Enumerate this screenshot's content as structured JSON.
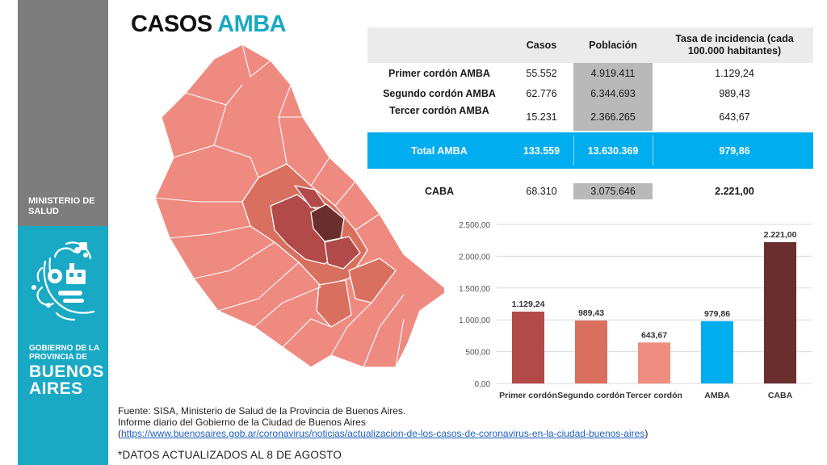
{
  "title": {
    "part1": "CASOS",
    "part2": "AMBA"
  },
  "sidebar": {
    "ministry_line1": "MINISTERIO DE",
    "ministry_line2": "SALUD",
    "gov_line1": "GOBIERNO DE LA",
    "gov_line2": "PROVINCIA DE",
    "ba_line1": "BUENOS",
    "ba_line2": "AIRES"
  },
  "table": {
    "headers": [
      "Casos",
      "Población",
      "Tasa de incidencia (cada 100.000 habitantes)"
    ],
    "rows": [
      {
        "label": "Primer cordón AMBA",
        "casos": "55.552",
        "poblacion": "4.919.411",
        "tasa": "1.129,24"
      },
      {
        "label": "Segundo cordón AMBA",
        "casos": "62.776",
        "poblacion": "6.344.693",
        "tasa": "989,43"
      },
      {
        "label": "Tercer cordón AMBA",
        "casos": "15.231",
        "poblacion": "2.366.265",
        "tasa": "643,67"
      }
    ],
    "total": {
      "label": "Total AMBA",
      "casos": "133.559",
      "poblacion": "13.630.369",
      "tasa": "979,86"
    },
    "caba": {
      "label": "CABA",
      "casos": "68.310",
      "poblacion": "3.075.646",
      "tasa": "2.221,00"
    }
  },
  "chart_data": {
    "type": "bar",
    "categories": [
      "Primer cordón",
      "Segundo cordón",
      "Tercer cordón",
      "AMBA",
      "CABA"
    ],
    "values": [
      1129.24,
      989.43,
      643.67,
      979.86,
      2221.0
    ],
    "value_labels": [
      "1.129,24",
      "989,43",
      "643,67",
      "979,86",
      "2.221,00"
    ],
    "colors": [
      "#b24a4a",
      "#d9705f",
      "#ee8d80",
      "#00aeef",
      "#6b2e2e"
    ],
    "yticks": [
      0,
      500,
      1000,
      1500,
      2000,
      2500
    ],
    "ytick_labels": [
      "0,00",
      "500,00",
      "1.000,00",
      "1.500,00",
      "2.000,00",
      "2.500,00"
    ],
    "ylim": [
      0,
      2500
    ],
    "grid": true,
    "title": "",
    "xlabel": "",
    "ylabel": ""
  },
  "map_colors": {
    "light": "#ef8a80",
    "medium": "#d9705f",
    "dark": "#b24a4a",
    "darkest": "#6b2e2e"
  },
  "source": {
    "line1": "Fuente: SISA, Ministerio de Salud de la Provincia de Buenos Aires.",
    "line2": " Informe diario del Gobierno de la Ciudad de Buenos Aires",
    "open": "(",
    "url": "https://www.buenosaires.gob.ar/coronavirus/noticias/actualizacion-de-los-casos-de-coronavirus-en-la-ciudad-buenos-aires",
    "close": ")"
  },
  "updated": "*DATOS ACTUALIZADOS AL 8 DE AGOSTO"
}
